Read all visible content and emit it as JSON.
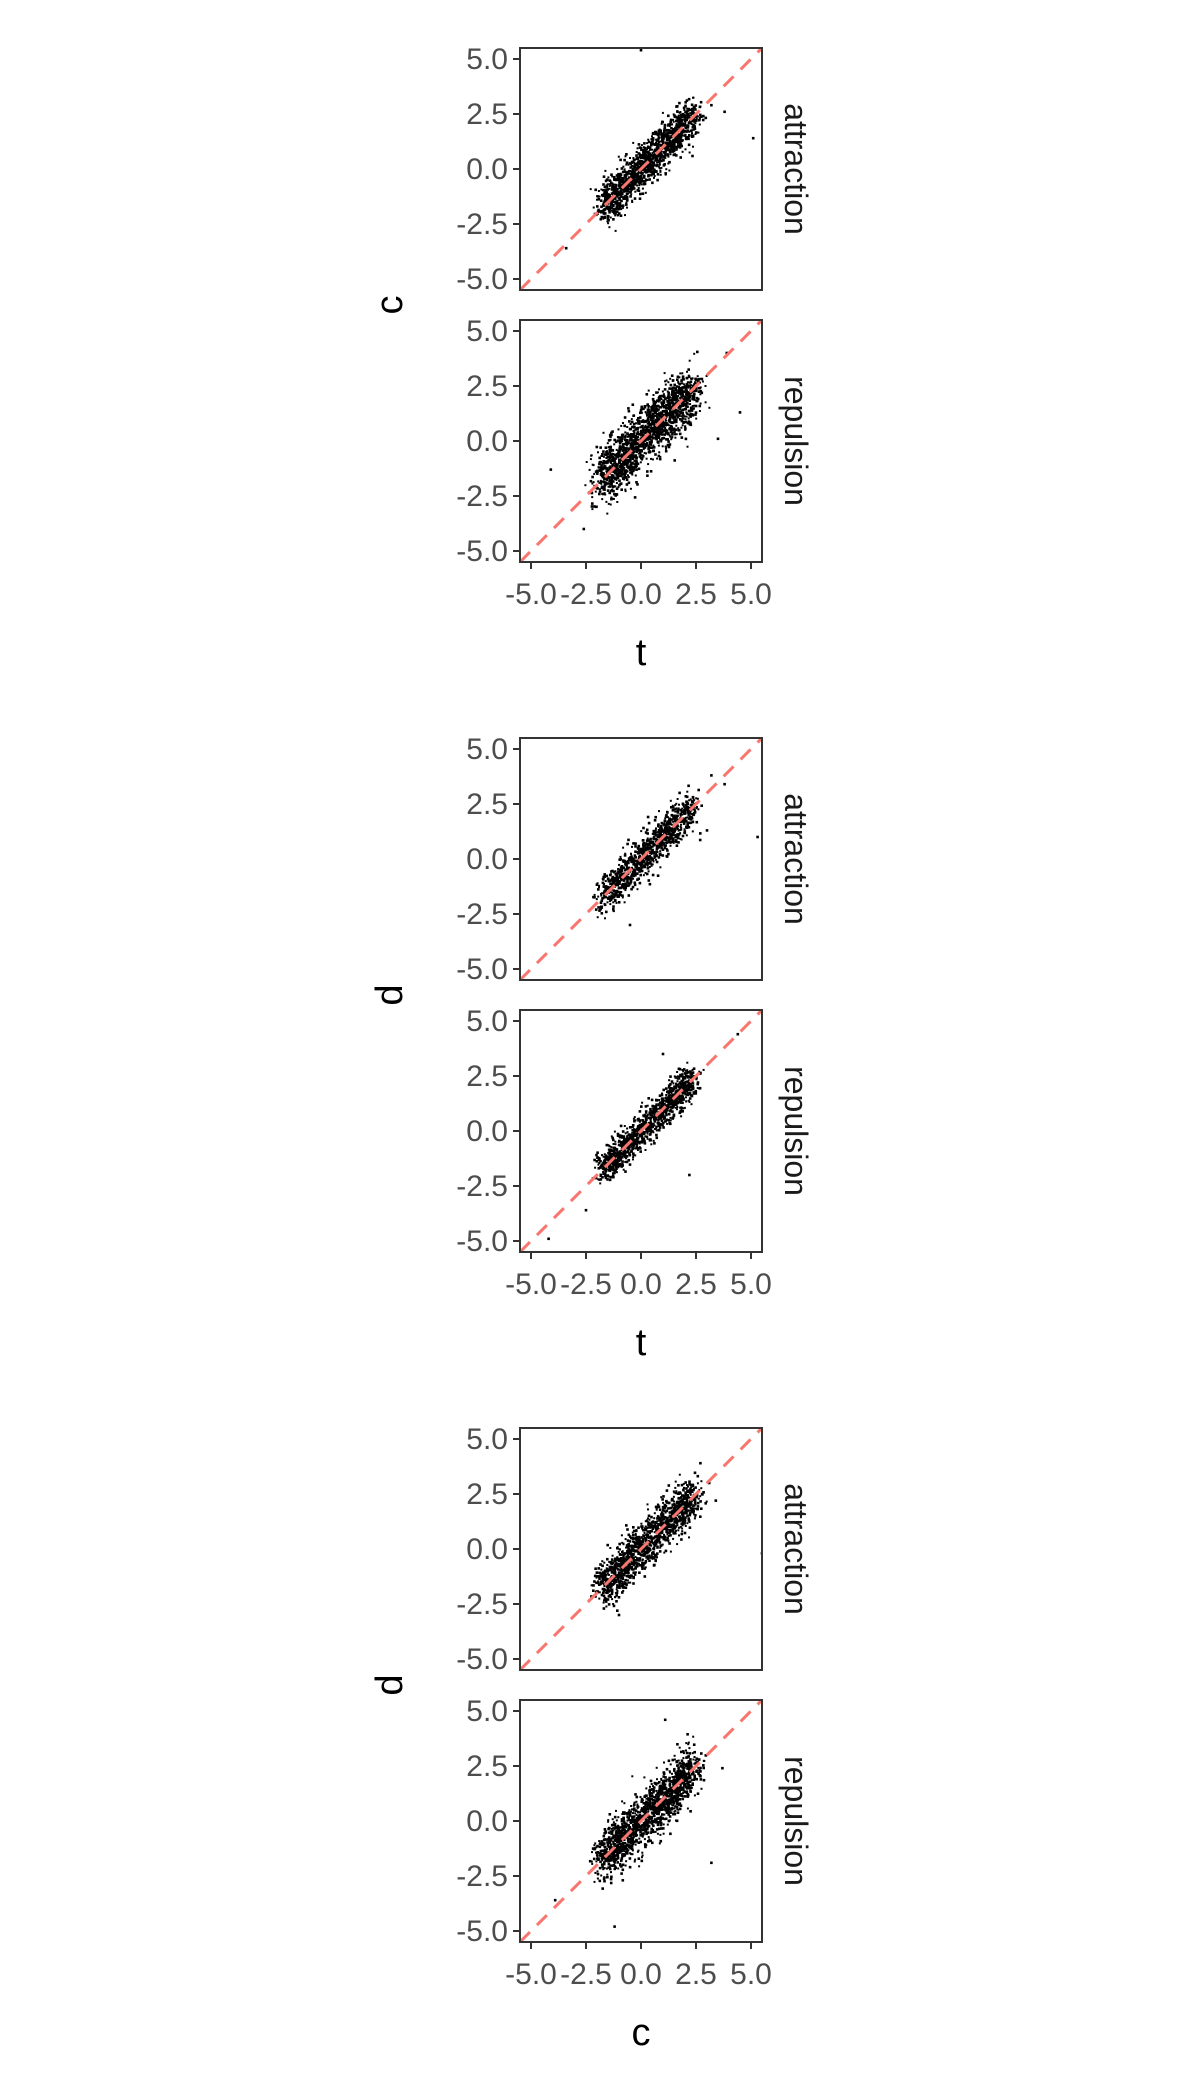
{
  "chart_data": [
    {
      "type": "scatter",
      "xlabel": "t",
      "ylabel": "c",
      "xlim": [
        -5.5,
        5.5
      ],
      "ylim": [
        -5.5,
        5.5
      ],
      "x_ticks": [
        "-5.0",
        "-2.5",
        "0.0",
        "2.5",
        "5.0"
      ],
      "y_ticks": [
        "-5.0",
        "-2.5",
        "0.0",
        "2.5",
        "5.0"
      ],
      "reference_line": "y = x",
      "facets": [
        {
          "label": "attraction",
          "n_points": 1400,
          "spread": 0.45,
          "seed": 11,
          "outliers": [
            [
              0.0,
              5.4
            ],
            [
              5.1,
              1.4
            ],
            [
              3.2,
              2.9
            ],
            [
              -3.4,
              -3.6
            ],
            [
              3.8,
              2.6
            ]
          ]
        },
        {
          "label": "repulsion",
          "n_points": 1600,
          "spread": 0.62,
          "seed": 23,
          "outliers": [
            [
              -4.1,
              -1.3
            ],
            [
              -2.6,
              -4.0
            ],
            [
              4.5,
              1.3
            ],
            [
              3.9,
              4.0
            ],
            [
              3.5,
              0.1
            ]
          ]
        }
      ]
    },
    {
      "type": "scatter",
      "xlabel": "t",
      "ylabel": "d",
      "xlim": [
        -5.5,
        5.5
      ],
      "ylim": [
        -5.5,
        5.5
      ],
      "x_ticks": [
        "-5.0",
        "-2.5",
        "0.0",
        "2.5",
        "5.0"
      ],
      "y_ticks": [
        "-5.0",
        "-2.5",
        "0.0",
        "2.5",
        "5.0"
      ],
      "reference_line": "y = x",
      "facets": [
        {
          "label": "attraction",
          "n_points": 1000,
          "spread": 0.42,
          "seed": 37,
          "outliers": [
            [
              5.3,
              1.0
            ],
            [
              3.2,
              3.8
            ],
            [
              -0.5,
              -3.0
            ],
            [
              3.0,
              1.3
            ],
            [
              3.8,
              3.4
            ]
          ]
        },
        {
          "label": "repulsion",
          "n_points": 1100,
          "spread": 0.38,
          "seed": 41,
          "outliers": [
            [
              -4.2,
              -4.9
            ],
            [
              1.0,
              3.5
            ],
            [
              2.2,
              -2.0
            ],
            [
              4.4,
              4.4
            ],
            [
              -2.5,
              -3.6
            ]
          ]
        }
      ]
    },
    {
      "type": "scatter",
      "xlabel": "c",
      "ylabel": "d",
      "xlim": [
        -5.5,
        5.5
      ],
      "ylim": [
        -5.5,
        5.5
      ],
      "x_ticks": [
        "-5.0",
        "-2.5",
        "0.0",
        "2.5",
        "5.0"
      ],
      "y_ticks": [
        "-5.0",
        "-2.5",
        "0.0",
        "2.5",
        "5.0"
      ],
      "reference_line": "y = x",
      "facets": [
        {
          "label": "attraction",
          "n_points": 1300,
          "spread": 0.5,
          "seed": 53,
          "outliers": [
            [
              5.5,
              -0.2
            ],
            [
              2.7,
              3.9
            ],
            [
              -1.0,
              -3.0
            ],
            [
              3.4,
              2.2
            ],
            [
              3.1,
              3.0
            ]
          ]
        },
        {
          "label": "repulsion",
          "n_points": 1500,
          "spread": 0.55,
          "seed": 67,
          "outliers": [
            [
              -3.9,
              -3.6
            ],
            [
              1.1,
              4.6
            ],
            [
              -1.2,
              -4.8
            ],
            [
              3.2,
              -1.9
            ],
            [
              3.7,
              2.4
            ]
          ]
        }
      ]
    }
  ],
  "colors": {
    "points": "#000000",
    "reference_line": "#f8766d",
    "panel_border": "#333333",
    "tick_text": "#4d4d4d"
  }
}
